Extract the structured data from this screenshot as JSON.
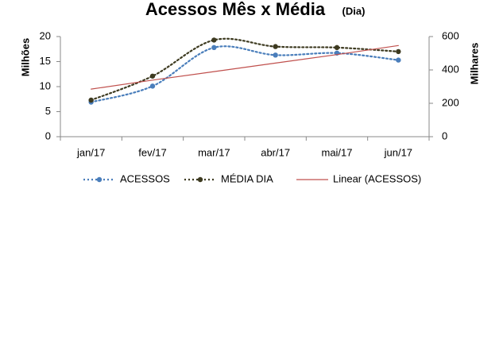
{
  "chart_data": {
    "type": "line",
    "title": "Acessos Mês x Média",
    "subtitle": "(Dia)",
    "y_label": "Milhões",
    "y2_label": "Milhares",
    "categories": [
      "jan/17",
      "fev/17",
      "mar/17",
      "abr/17",
      "mai/17",
      "jun/17"
    ],
    "series": [
      {
        "name": "ACESSOS",
        "color": "#4a7ebb",
        "style": "dotted",
        "smooth": true,
        "values": [
          6.9,
          10.1,
          17.8,
          16.3,
          16.7,
          15.3
        ]
      },
      {
        "name": "MÉDIA DIA",
        "color": "#3d3a20",
        "style": "dotted",
        "smooth": true,
        "axis": "y2",
        "values": [
          219,
          363,
          579,
          540,
          534,
          510
        ]
      },
      {
        "name": "Linear (ACESSOS)",
        "color": "#c0504d",
        "style": "solid",
        "smooth": false,
        "markers": false,
        "values": [
          9.5,
          11.3,
          13.0,
          14.7,
          16.4,
          18.2
        ]
      }
    ],
    "ylim": [
      0,
      20
    ],
    "yticks": [
      0,
      5,
      10,
      15,
      20
    ],
    "y2lim": [
      0,
      600
    ],
    "y2ticks": [
      0,
      200,
      400,
      600
    ],
    "grid": false,
    "legend": "bottom"
  }
}
